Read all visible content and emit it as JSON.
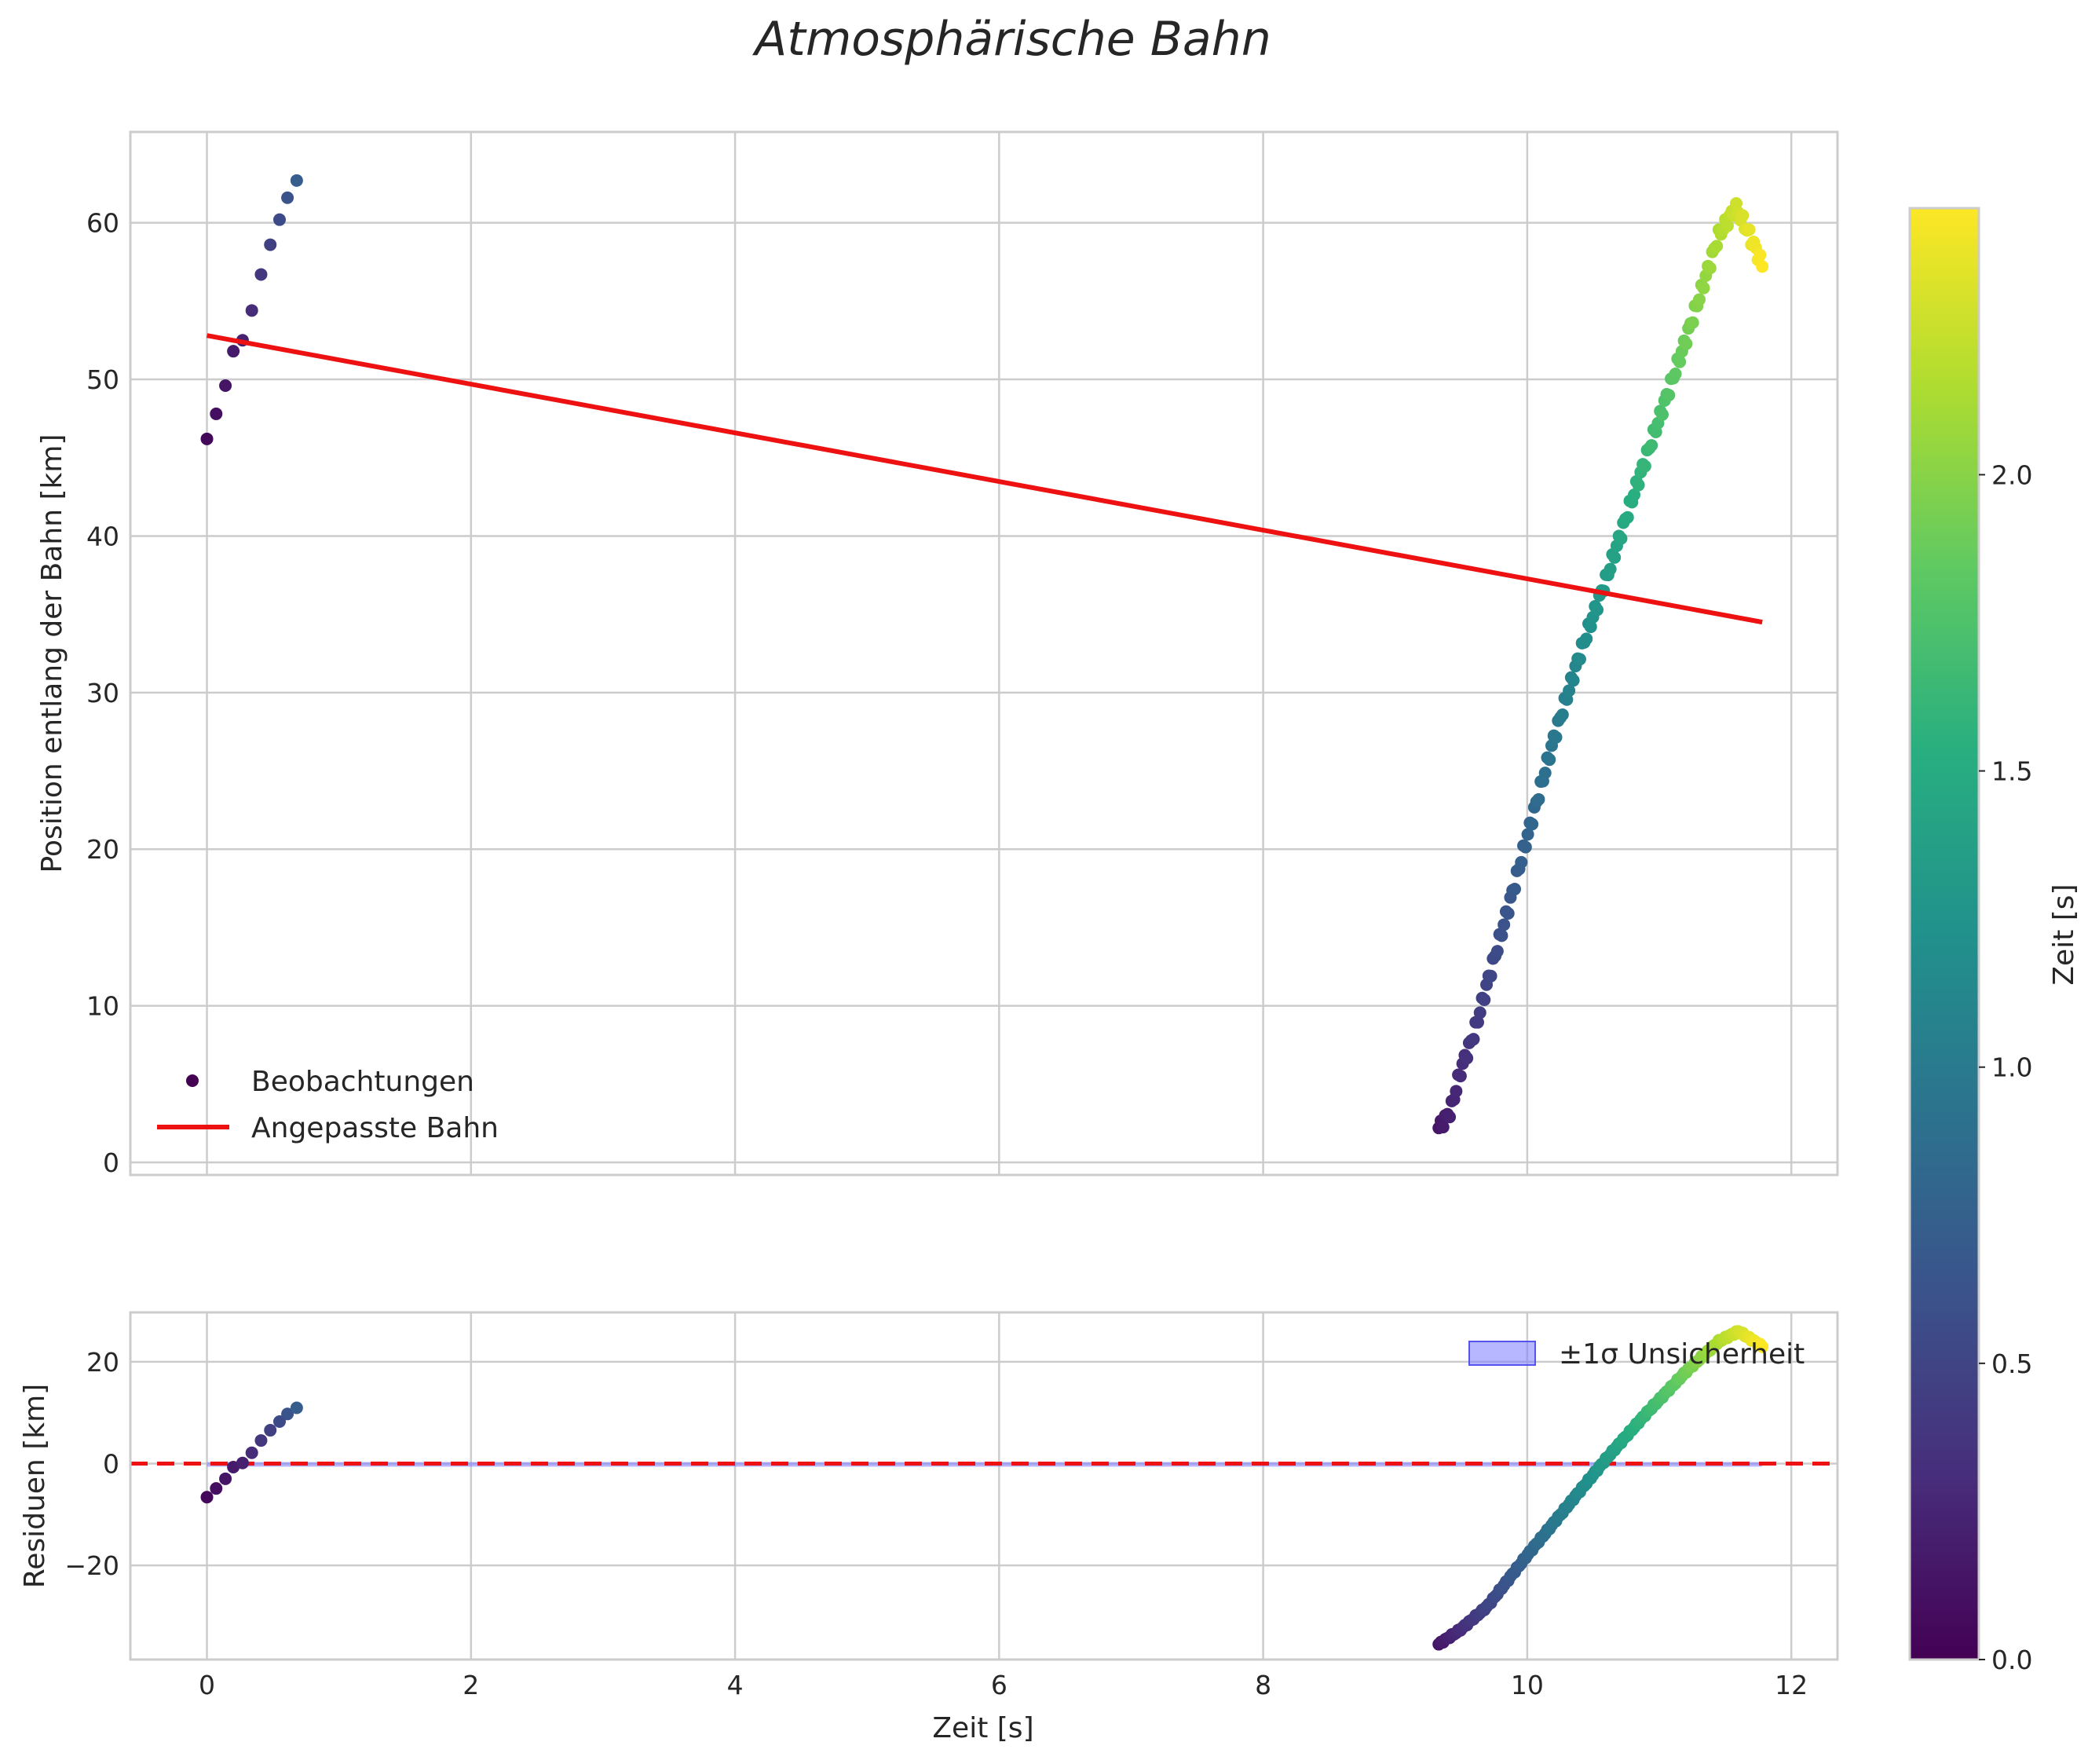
{
  "chart_data": {
    "title": "Atmosphärische Bahn",
    "colorbar": {
      "label": "Zeit [s]",
      "range": [
        0.0,
        2.45
      ],
      "ticks": [
        "0.0",
        "0.5",
        "1.0",
        "1.5",
        "2.0"
      ],
      "colormap": "viridis"
    },
    "panels": [
      {
        "id": "top",
        "type": "scatter",
        "xlabel": "",
        "ylabel": "Position entlang der Bahn [km]",
        "xlim": [
          -0.58,
          12.35
        ],
        "ylim": [
          -0.8,
          65.8
        ],
        "xticks": [
          0,
          2,
          4,
          6,
          8,
          10,
          12
        ],
        "yticks": [
          0,
          10,
          20,
          30,
          40,
          50,
          60
        ],
        "grid": true,
        "legend": {
          "placement": "lower-left",
          "entries": [
            "Beobachtungen",
            "Angepasste Bahn"
          ]
        },
        "fit_line": {
          "name": "Angepasste Bahn",
          "x": [
            0.0,
            11.78
          ],
          "y": [
            52.8,
            34.5
          ],
          "color": "#ee1111"
        },
        "series_name": "Beobachtungen"
      },
      {
        "id": "bottom",
        "type": "scatter",
        "xlabel": "Zeit [s]",
        "ylabel": "Residuen [km]",
        "xlim": [
          -0.58,
          12.35
        ],
        "ylim": [
          -38.5,
          29.7
        ],
        "xticks": [
          0,
          2,
          4,
          6,
          8,
          10,
          12
        ],
        "yticks": [
          -20,
          0,
          20
        ],
        "grid": true,
        "legend": {
          "placement": "top-right",
          "entries": [
            "±1σ Unsicherheit"
          ]
        },
        "zero_line": {
          "y": 0,
          "color": "#ee1111",
          "style": "dashed"
        },
        "band": {
          "name": "±1σ Unsicherheit",
          "y": [
            -0.3,
            0.3
          ],
          "color": "#7b7bff"
        }
      }
    ],
    "observations": {
      "early": [
        {
          "x": 0.0,
          "y": 46.2,
          "t": 0.05
        },
        {
          "x": 0.07,
          "y": 47.8,
          "t": 0.1
        },
        {
          "x": 0.14,
          "y": 49.6,
          "t": 0.14
        },
        {
          "x": 0.2,
          "y": 51.8,
          "t": 0.18
        },
        {
          "x": 0.27,
          "y": 52.5,
          "t": 0.22
        },
        {
          "x": 0.34,
          "y": 54.4,
          "t": 0.3
        },
        {
          "x": 0.41,
          "y": 56.7,
          "t": 0.38
        },
        {
          "x": 0.48,
          "y": 58.6,
          "t": 0.46
        },
        {
          "x": 0.55,
          "y": 60.2,
          "t": 0.55
        },
        {
          "x": 0.61,
          "y": 61.6,
          "t": 0.63
        },
        {
          "x": 0.68,
          "y": 62.7,
          "t": 0.72
        }
      ],
      "late": {
        "x_start": 9.33,
        "x_end": 11.78,
        "count": 150,
        "y_anchors": [
          [
            9.33,
            2.2
          ],
          [
            9.42,
            3.3
          ],
          [
            9.5,
            6.0
          ],
          [
            9.6,
            8.3
          ],
          [
            9.7,
            11.5
          ],
          [
            9.8,
            14.5
          ],
          [
            9.9,
            17.6
          ],
          [
            10.0,
            20.8
          ],
          [
            10.2,
            27.0
          ],
          [
            10.4,
            32.5
          ],
          [
            10.6,
            37.3
          ],
          [
            10.8,
            42.5
          ],
          [
            11.0,
            47.5
          ],
          [
            11.2,
            52.5
          ],
          [
            11.35,
            56.5
          ],
          [
            11.45,
            59.2
          ],
          [
            11.58,
            61.0
          ],
          [
            11.68,
            59.3
          ],
          [
            11.78,
            57.3
          ]
        ],
        "residual_anchors": [
          [
            9.33,
            -35.5
          ],
          [
            9.5,
            -32.5
          ],
          [
            9.7,
            -28.0
          ],
          [
            10.0,
            -18.0
          ],
          [
            10.3,
            -8.5
          ],
          [
            10.6,
            1.0
          ],
          [
            10.9,
            9.8
          ],
          [
            11.2,
            18.0
          ],
          [
            11.45,
            24.0
          ],
          [
            11.6,
            26.0
          ],
          [
            11.78,
            23.0
          ]
        ]
      }
    }
  }
}
